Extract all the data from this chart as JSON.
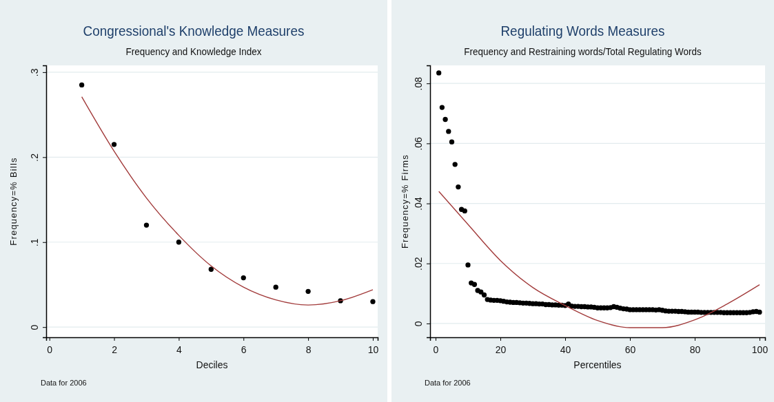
{
  "chart_data": [
    {
      "type": "scatter",
      "title": "Congressional's Knowledge Measures",
      "subtitle": "Frequency and Knowledge Index",
      "xlabel": "Deciles",
      "ylabel": "Frequency=% Bills",
      "annotations": [
        "Data for 2006"
      ],
      "xlim": [
        -0.1,
        10.15
      ],
      "ylim": [
        -0.012,
        0.308
      ],
      "xticks": [
        0,
        2,
        4,
        6,
        8,
        10
      ],
      "yticks": [
        {
          "value": 0,
          "label": "0"
        },
        {
          "value": 0.1,
          "label": ".1"
        },
        {
          "value": 0.2,
          "label": ".2"
        },
        {
          "value": 0.3,
          "label": ".3"
        }
      ],
      "grid": "y",
      "series": [
        {
          "type": "scatter",
          "marker": "circle",
          "color": "#000000",
          "x": [
            1,
            2,
            3,
            4,
            5,
            6,
            7,
            8,
            9,
            10
          ],
          "values": [
            0.285,
            0.215,
            0.12,
            0.1,
            0.068,
            0.058,
            0.047,
            0.042,
            0.031,
            0.03
          ]
        },
        {
          "type": "line",
          "color": "#a23b3b",
          "x": [
            1,
            2,
            3,
            4,
            5,
            6,
            7,
            8,
            9,
            10
          ],
          "values": [
            0.271,
            0.207,
            0.152,
            0.108,
            0.072,
            0.047,
            0.032,
            0.026,
            0.031,
            0.044
          ]
        }
      ]
    },
    {
      "type": "scatter",
      "title": "Regulating Words Measures",
      "subtitle": "Frequency and Restraining words/Total Regulating Words",
      "xlabel": "Percentiles",
      "ylabel": "Frequency=% Firms",
      "annotations": [
        "Data for 2006"
      ],
      "xlim": [
        -1.7,
        101.7
      ],
      "ylim": [
        -0.0046,
        0.086
      ],
      "xticks": [
        0,
        20,
        40,
        60,
        80,
        100
      ],
      "yticks": [
        {
          "value": 0,
          "label": "0"
        },
        {
          "value": 0.02,
          "label": ".02"
        },
        {
          "value": 0.04,
          "label": ".04"
        },
        {
          "value": 0.06,
          "label": ".06"
        },
        {
          "value": 0.08,
          "label": ".08"
        }
      ],
      "grid": "y",
      "series": [
        {
          "type": "scatter",
          "marker": "circle",
          "color": "#000000",
          "x": [
            1,
            2,
            3,
            4,
            5,
            6,
            7,
            8,
            9,
            10,
            11,
            12,
            13,
            14,
            15,
            16,
            17,
            18,
            19,
            20,
            21,
            22,
            23,
            24,
            25,
            26,
            27,
            28,
            29,
            30,
            31,
            32,
            33,
            34,
            35,
            36,
            37,
            38,
            39,
            40,
            41,
            42,
            43,
            44,
            45,
            46,
            47,
            48,
            49,
            50,
            51,
            52,
            53,
            54,
            55,
            56,
            57,
            58,
            59,
            60,
            61,
            62,
            63,
            64,
            65,
            66,
            67,
            68,
            69,
            70,
            71,
            72,
            73,
            74,
            75,
            76,
            77,
            78,
            79,
            80,
            81,
            82,
            83,
            84,
            85,
            86,
            87,
            88,
            89,
            90,
            91,
            92,
            93,
            94,
            95,
            96,
            97,
            98,
            99,
            100
          ],
          "values": [
            0.0835,
            0.072,
            0.068,
            0.064,
            0.0605,
            0.053,
            0.0455,
            0.038,
            0.0375,
            0.0195,
            0.0135,
            0.013,
            0.011,
            0.0105,
            0.0095,
            0.008,
            0.0078,
            0.0077,
            0.0077,
            0.0076,
            0.0074,
            0.0072,
            0.0071,
            0.007,
            0.007,
            0.0069,
            0.0068,
            0.0068,
            0.0067,
            0.0066,
            0.0066,
            0.0065,
            0.0065,
            0.0063,
            0.0063,
            0.0062,
            0.0062,
            0.0061,
            0.0061,
            0.006,
            0.0065,
            0.0058,
            0.0057,
            0.0057,
            0.0056,
            0.0056,
            0.0055,
            0.0055,
            0.0054,
            0.0052,
            0.0052,
            0.0052,
            0.0052,
            0.0053,
            0.0056,
            0.0054,
            0.0051,
            0.0049,
            0.0048,
            0.0046,
            0.0046,
            0.0046,
            0.0046,
            0.0046,
            0.0046,
            0.0046,
            0.0046,
            0.0045,
            0.0046,
            0.0044,
            0.0042,
            0.0041,
            0.0041,
            0.0041,
            0.004,
            0.004,
            0.0039,
            0.0038,
            0.0038,
            0.0038,
            0.0038,
            0.0037,
            0.0037,
            0.0037,
            0.0037,
            0.0037,
            0.0037,
            0.0037,
            0.0036,
            0.0036,
            0.0036,
            0.0036,
            0.0036,
            0.0036,
            0.0036,
            0.0036,
            0.0037,
            0.0039,
            0.004,
            0.0038
          ]
        },
        {
          "type": "line",
          "color": "#a23b3b",
          "x": [
            1,
            10,
            20,
            30,
            40,
            50,
            60,
            70,
            80,
            90,
            100
          ],
          "values": [
            0.044,
            0.033,
            0.021,
            0.012,
            0.006,
            0.001,
            -0.0014,
            -0.0014,
            0.0012,
            0.0065,
            0.0129
          ]
        }
      ]
    }
  ]
}
